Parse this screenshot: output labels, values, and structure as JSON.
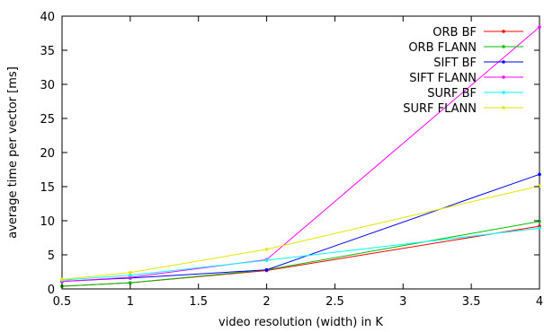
{
  "chart_data": {
    "type": "line",
    "title": "",
    "xlabel": "video resolution (width) in K",
    "ylabel": "average time per vector [ms]",
    "xlim": [
      0.5,
      4
    ],
    "ylim": [
      0,
      40
    ],
    "xticks": [
      0.5,
      1,
      1.5,
      2,
      2.5,
      3,
      3.5,
      4
    ],
    "yticks": [
      0,
      5,
      10,
      15,
      20,
      25,
      30,
      35,
      40
    ],
    "xtick_labels": [
      "0.5",
      "1",
      "1.5",
      "2",
      "2.5",
      "3",
      "3.5",
      "4"
    ],
    "ytick_labels": [
      "0",
      "5",
      "10",
      "15",
      "20",
      "25",
      "30",
      "35",
      "40"
    ],
    "grid": false,
    "legend_position": "top-right",
    "x": [
      0.5,
      1,
      2,
      4
    ],
    "series": [
      {
        "name": "ORB BF",
        "color": "#ff0000",
        "values": [
          0.4,
          0.9,
          2.7,
          9.2
        ]
      },
      {
        "name": "ORB FLANN",
        "color": "#00c000",
        "values": [
          0.4,
          0.9,
          2.8,
          9.9
        ]
      },
      {
        "name": "SIFT BF",
        "color": "#0000ff",
        "values": [
          1.1,
          1.6,
          2.8,
          16.8
        ]
      },
      {
        "name": "SIFT FLANN",
        "color": "#ff00ff",
        "values": [
          1.1,
          1.7,
          4.3,
          38.4
        ]
      },
      {
        "name": "SURF BF",
        "color": "#00ffff",
        "values": [
          1.3,
          2.0,
          4.2,
          8.9
        ]
      },
      {
        "name": "SURF FLANN",
        "color": "#e6e600",
        "values": [
          1.4,
          2.4,
          5.8,
          15.1
        ]
      }
    ]
  }
}
